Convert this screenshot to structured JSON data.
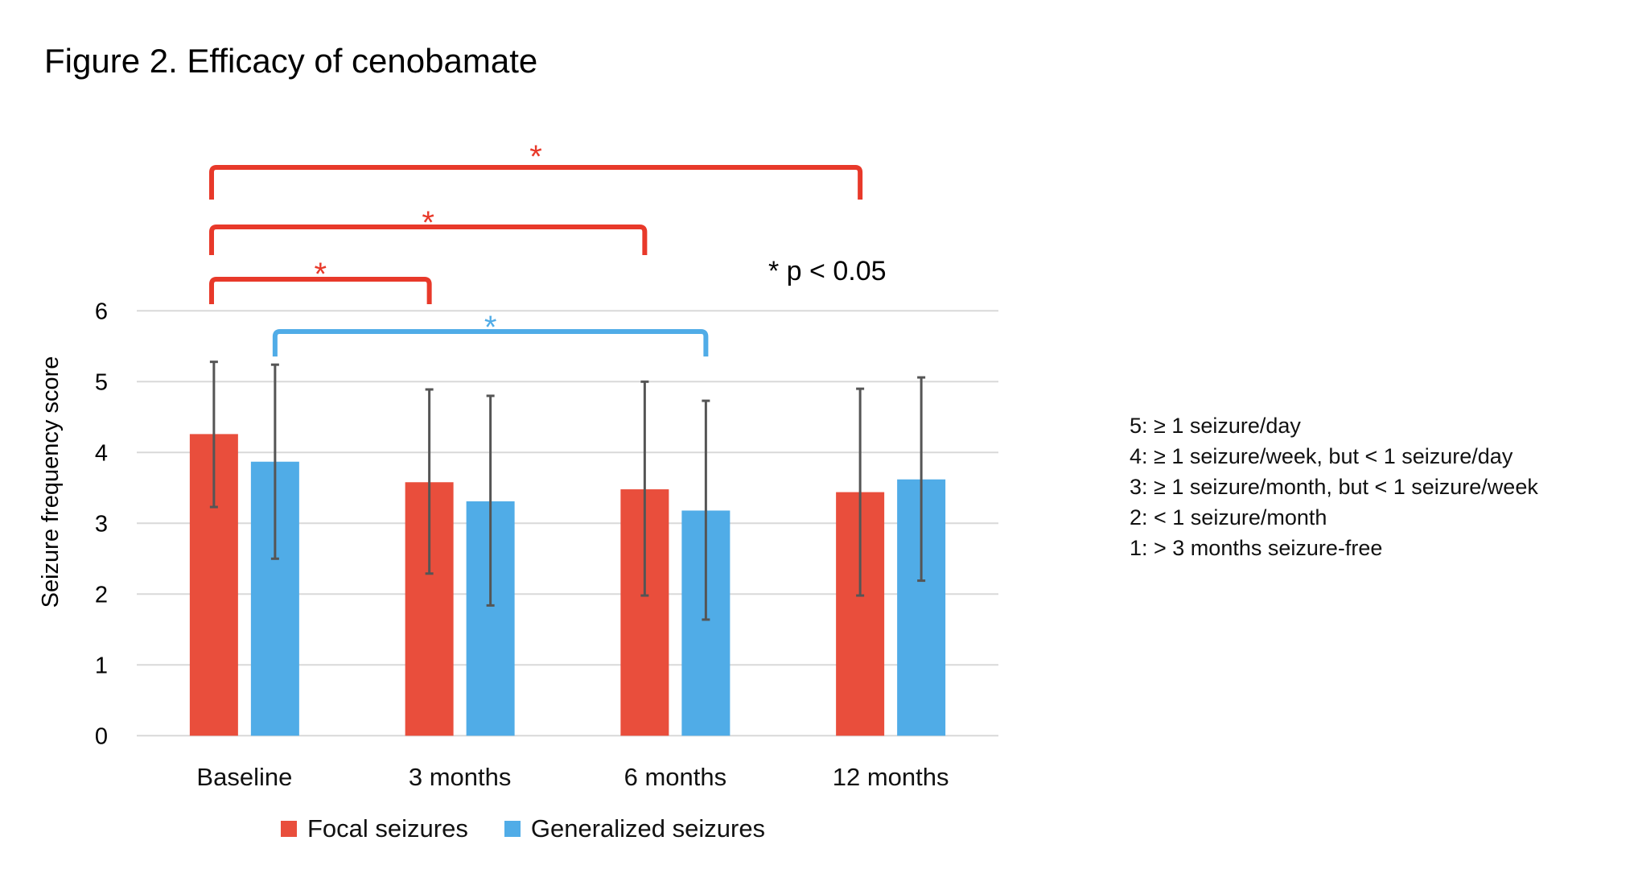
{
  "figure_title": "Figure 2. Efficacy of cenobamate",
  "significance_note": "* p < 0.05",
  "scale_definitions": [
    "5: ≥ 1 seizure/day",
    "4: ≥ 1 seizure/week, but < 1 seizure/day",
    "3: ≥ 1 seizure/month, but < 1 seizure/week",
    "2: < 1 seizure/month",
    "1: > 3 months seizure-free"
  ],
  "colors": {
    "focal": "#E94E3C",
    "generalized": "#50ACE7",
    "bracket_red": "#E8392A",
    "bracket_blue": "#50ACE7",
    "error_bar": "#555555",
    "grid": "#D9D9D9"
  },
  "chart_data": {
    "type": "bar",
    "title": "Figure 2. Efficacy of cenobamate",
    "xlabel": "",
    "ylabel": "Seizure frequency score",
    "ylim": [
      0,
      6
    ],
    "yticks": [
      0,
      1,
      2,
      3,
      4,
      5,
      6
    ],
    "grid": true,
    "legend_position": "bottom",
    "categories": [
      "Baseline",
      "3 months",
      "6 months",
      "12 months"
    ],
    "series": [
      {
        "name": "Focal seizures",
        "color": "#E94E3C",
        "values": [
          4.26,
          3.58,
          3.48,
          3.44
        ],
        "error_low": [
          3.23,
          2.29,
          1.98,
          1.98
        ],
        "error_high": [
          5.28,
          4.89,
          5.0,
          4.9
        ]
      },
      {
        "name": "Generalized seizures",
        "color": "#50ACE7",
        "values": [
          3.87,
          3.31,
          3.18,
          3.62
        ],
        "error_low": [
          2.5,
          1.84,
          1.64,
          2.19
        ],
        "error_high": [
          5.24,
          4.8,
          4.73,
          5.06
        ]
      }
    ],
    "significance_brackets": [
      {
        "series": "Focal seizures",
        "from": "Baseline",
        "to": "12 months",
        "label": "*"
      },
      {
        "series": "Focal seizures",
        "from": "Baseline",
        "to": "6 months",
        "label": "*"
      },
      {
        "series": "Focal seizures",
        "from": "Baseline",
        "to": "3 months",
        "label": "*"
      },
      {
        "series": "Generalized seizures",
        "from": "Baseline",
        "to": "6 months",
        "label": "*"
      }
    ],
    "annotations": [
      "* p < 0.05"
    ]
  }
}
